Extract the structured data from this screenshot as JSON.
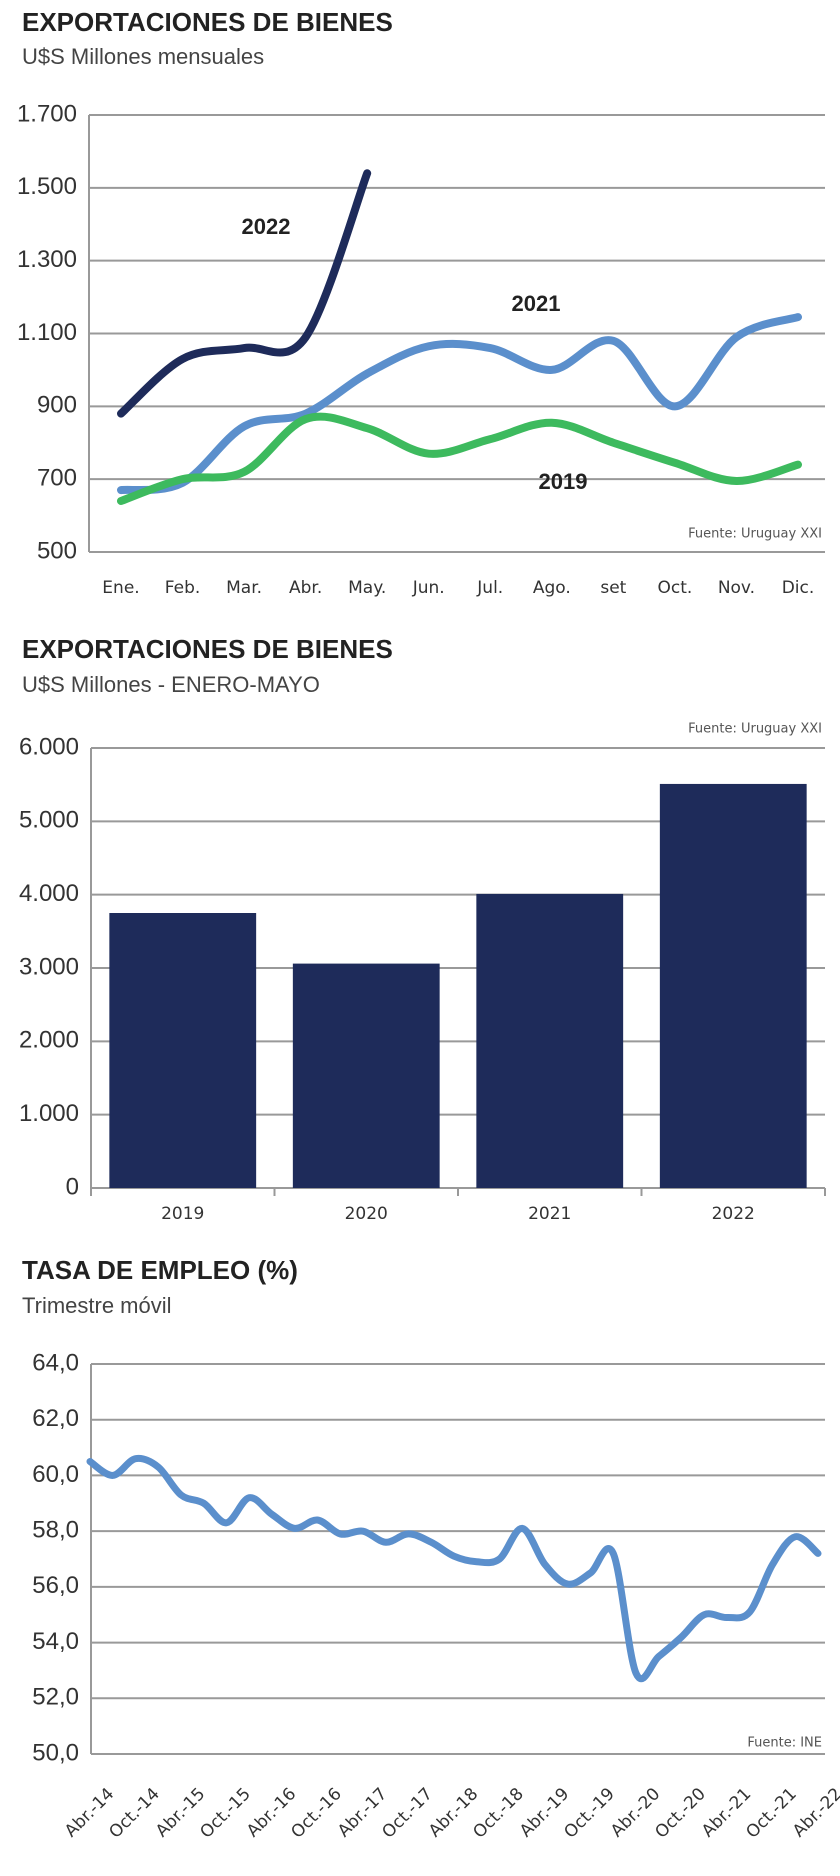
{
  "charts": [
    {
      "type": "line",
      "title": "EXPORTACIONES DE BIENES",
      "subtitle": "U$S Millones  mensuales",
      "source": "Fuente: Uruguay XXI",
      "categories": [
        "Ene.",
        "Feb.",
        "Mar.",
        "Abr.",
        "May.",
        "Jun.",
        "Jul.",
        "Ago.",
        "set",
        "Oct.",
        "Nov.",
        "Dic."
      ],
      "series": [
        {
          "name": "2022",
          "color": "#1e2b5a",
          "values": [
            880,
            1030,
            1060,
            1090,
            1540,
            null,
            null,
            null,
            null,
            null,
            null,
            null
          ]
        },
        {
          "name": "2021",
          "color": "#5b8fcc",
          "values": [
            670,
            690,
            845,
            880,
            990,
            1065,
            1060,
            1000,
            1080,
            900,
            1090,
            1145
          ]
        },
        {
          "name": "2019",
          "color": "#3dba5e",
          "values": [
            640,
            700,
            720,
            865,
            840,
            770,
            810,
            855,
            800,
            745,
            695,
            740
          ]
        }
      ],
      "ylim": [
        500,
        1700
      ],
      "yticks": [
        500,
        700,
        900,
        {
          "value": 1100,
          "label": "1.100"
        },
        {
          "value": 1300,
          "label": "1.300"
        },
        {
          "value": 1500,
          "label": "1.500"
        },
        {
          "value": 1700,
          "label": "1.700"
        }
      ],
      "grid": true
    },
    {
      "type": "bar",
      "title": "EXPORTACIONES DE BIENES",
      "subtitle": "U$S Millones - ENERO-MAYO",
      "source": "Fuente: Uruguay XXI",
      "categories": [
        "2019",
        "2020",
        "2021",
        "2022"
      ],
      "values": [
        3750,
        3060,
        4010,
        5510
      ],
      "color": "#1e2b5a",
      "ylim": [
        0,
        6000
      ],
      "yticks": [
        0,
        {
          "value": 1000,
          "label": "1.000"
        },
        {
          "value": 2000,
          "label": "2.000"
        },
        {
          "value": 3000,
          "label": "3.000"
        },
        {
          "value": 4000,
          "label": "4.000"
        },
        {
          "value": 5000,
          "label": "5.000"
        },
        {
          "value": 6000,
          "label": "6.000"
        }
      ],
      "grid": true
    },
    {
      "type": "line",
      "title": "TASA DE EMPLEO (%)",
      "subtitle": "Trimestre móvil",
      "source": "Fuente: INE",
      "categories": [
        "Abr.-14",
        null,
        "Oct.-14",
        null,
        "Abr.-15",
        null,
        "Oct.-15",
        null,
        "Abr.-16",
        null,
        "Oct.-16",
        null,
        "Abr.-17",
        null,
        "Oct.-17",
        null,
        "Abr.-18",
        null,
        "Oct.-18",
        null,
        "Abr.-19",
        null,
        "Oct.-19",
        null,
        "Abr.-20",
        null,
        "Oct.-20",
        null,
        "Abr.-21",
        null,
        "Oct.-21",
        null,
        "Abr.-22"
      ],
      "series": [
        {
          "name": null,
          "color": "#5b8fcc",
          "values": [
            60.5,
            60.0,
            60.6,
            60.3,
            59.3,
            59.0,
            58.3,
            59.2,
            58.6,
            58.1,
            58.4,
            57.9,
            58.0,
            57.6,
            57.9,
            57.6,
            57.1,
            56.9,
            57.0,
            58.1,
            56.8,
            56.1,
            56.5,
            57.2,
            52.9,
            53.5,
            54.2,
            55.0,
            54.9,
            55.1,
            56.8,
            57.8,
            57.2
          ]
        }
      ],
      "ylim": [
        50,
        64
      ],
      "yticks": [
        {
          "value": 50,
          "label": "50,0"
        },
        {
          "value": 52,
          "label": "52,0"
        },
        {
          "value": 54,
          "label": "54,0"
        },
        {
          "value": 56,
          "label": "56,0"
        },
        {
          "value": 58,
          "label": "58,0"
        },
        {
          "value": 60,
          "label": "60,0"
        },
        {
          "value": 62,
          "label": "62,0"
        },
        {
          "value": 64,
          "label": "64,0"
        }
      ],
      "grid": true
    }
  ]
}
